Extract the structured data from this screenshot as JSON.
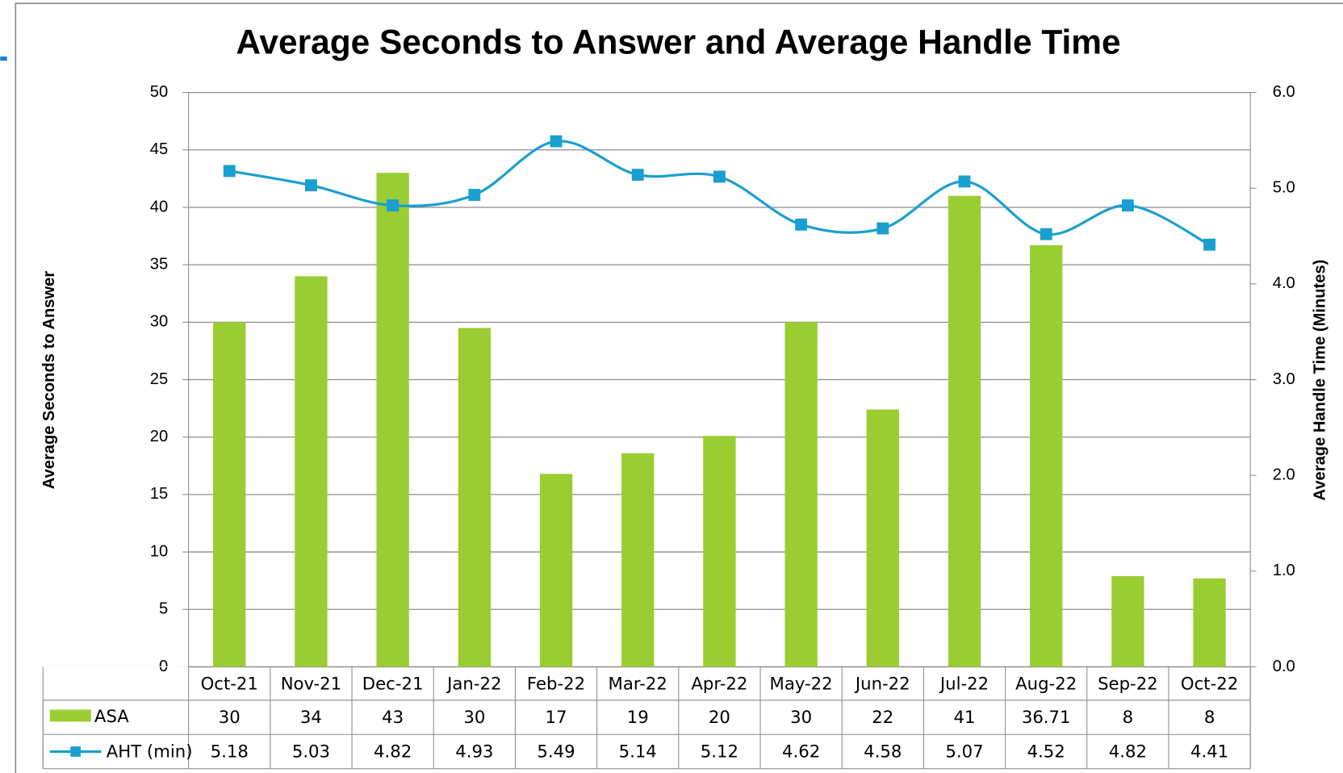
{
  "chart_data": {
    "type": "bar",
    "title": "Average Seconds to Answer and Average Handle Time",
    "y_label": "Average Seconds to Answer",
    "y2_label": "Average Handle Time (Minutes)",
    "categories": [
      "Oct-21",
      "Nov-21",
      "Dec-21",
      "Jan-22",
      "Feb-22",
      "Mar-22",
      "Apr-22",
      "May-22",
      "Jun-22",
      "Jul-22",
      "Aug-22",
      "Sep-22",
      "Oct-22"
    ],
    "series": [
      {
        "name": "ASA",
        "type": "bar",
        "color": "#9acd32",
        "values": [
          30,
          34,
          43,
          29.5,
          16.8,
          18.6,
          20.1,
          30,
          22.4,
          41,
          36.71,
          7.9,
          7.7
        ],
        "value_labels": [
          "30",
          "34",
          "43",
          "30",
          "17",
          "19",
          "20",
          "30",
          "22",
          "41",
          "36.71",
          "8",
          "8"
        ]
      },
      {
        "name": "AHT (min)",
        "type": "line",
        "axis": "y2",
        "color": "#1a9fd0",
        "values": [
          5.18,
          5.03,
          4.82,
          4.93,
          5.49,
          5.14,
          5.12,
          4.62,
          4.58,
          5.07,
          4.52,
          4.82,
          4.41
        ]
      }
    ],
    "ylim": [
      0,
      50
    ],
    "yticks": [
      0,
      5,
      10,
      15,
      20,
      25,
      30,
      35,
      40,
      45,
      50
    ],
    "y2lim": [
      0,
      6
    ],
    "y2ticks": [
      {
        "value": 0,
        "label": "0.0"
      },
      {
        "value": 1,
        "label": "1.0"
      },
      {
        "value": 2,
        "label": "2.0"
      },
      {
        "value": 3,
        "label": "3.0"
      },
      {
        "value": 4,
        "label": "4.0"
      },
      {
        "value": 5,
        "label": "5.0"
      },
      {
        "value": 6,
        "label": "6.0"
      }
    ],
    "grid": true
  }
}
